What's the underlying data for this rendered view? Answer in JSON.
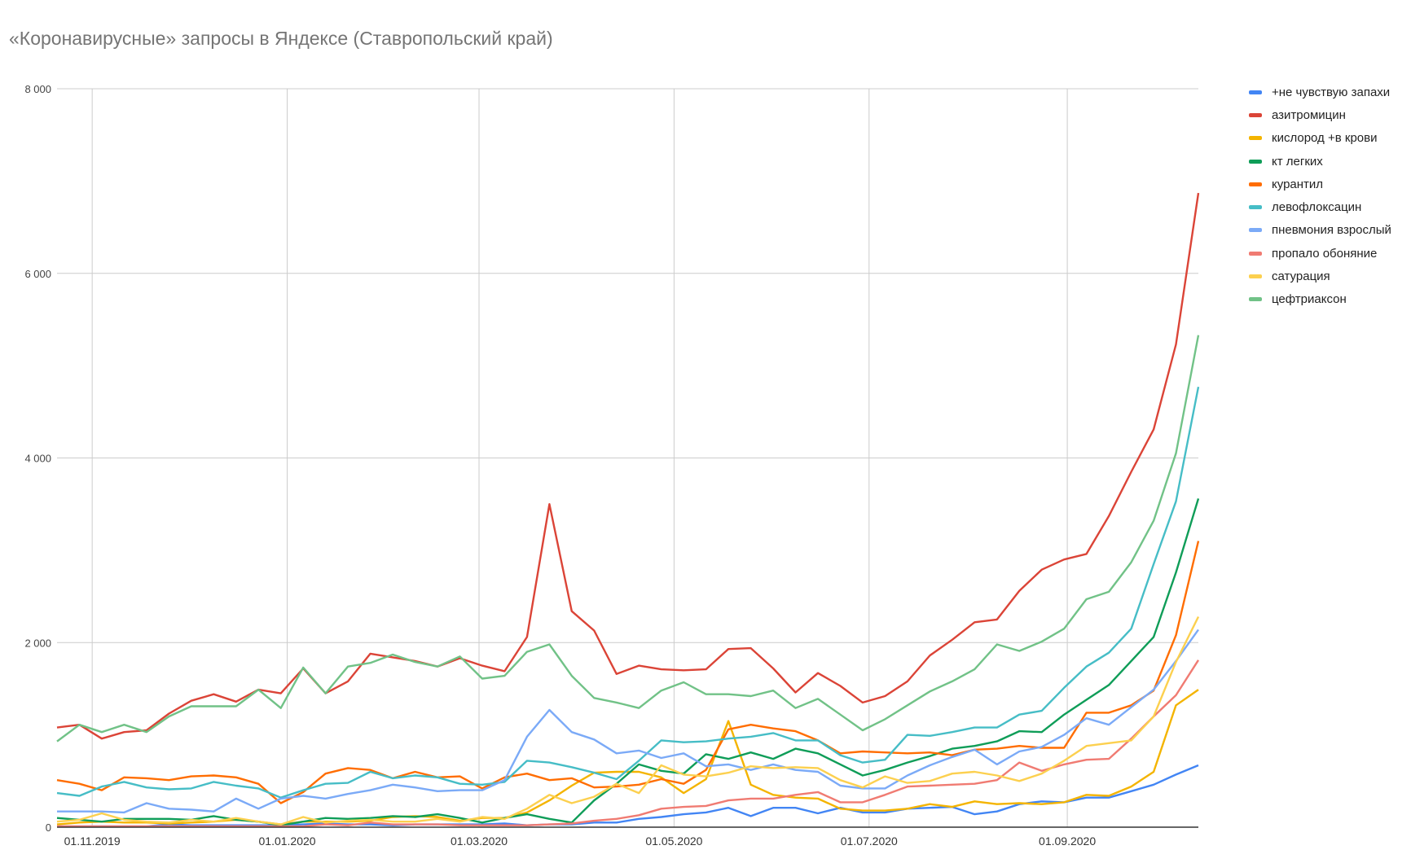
{
  "chart_data": {
    "type": "line",
    "title": "«Коронавирусные» запросы в Яндексе (Ставропольский край)",
    "xlabel": "",
    "ylabel": "",
    "ylim": [
      0,
      8000
    ],
    "yticks": [
      0,
      2000,
      4000,
      6000,
      8000
    ],
    "ytick_labels": [
      "0",
      "2 000",
      "4 000",
      "6 000",
      "8 000"
    ],
    "xticks": [
      "2019-11-01",
      "2020-01-01",
      "2020-03-01",
      "2020-05-01",
      "2020-07-01",
      "2020-09-01"
    ],
    "xtick_labels": [
      "01.11.2019",
      "01.01.2020",
      "01.03.2020",
      "01.05.2020",
      "01.07.2020",
      "01.09.2020"
    ],
    "grid": true,
    "legend_position": "right",
    "x": [
      "2019-10-21",
      "2019-10-28",
      "2019-11-04",
      "2019-11-11",
      "2019-11-18",
      "2019-11-25",
      "2019-12-02",
      "2019-12-09",
      "2019-12-16",
      "2019-12-23",
      "2019-12-30",
      "2020-01-06",
      "2020-01-13",
      "2020-01-20",
      "2020-01-27",
      "2020-02-03",
      "2020-02-10",
      "2020-02-17",
      "2020-02-24",
      "2020-03-02",
      "2020-03-09",
      "2020-03-16",
      "2020-03-23",
      "2020-03-30",
      "2020-04-06",
      "2020-04-13",
      "2020-04-20",
      "2020-04-27",
      "2020-05-04",
      "2020-05-11",
      "2020-05-18",
      "2020-05-25",
      "2020-06-01",
      "2020-06-08",
      "2020-06-15",
      "2020-06-22",
      "2020-06-29",
      "2020-07-06",
      "2020-07-13",
      "2020-07-20",
      "2020-07-27",
      "2020-08-03",
      "2020-08-10",
      "2020-08-17",
      "2020-08-24",
      "2020-08-31",
      "2020-09-07",
      "2020-09-14",
      "2020-09-21",
      "2020-09-28",
      "2020-10-05",
      "2020-10-12"
    ],
    "series": [
      {
        "name": "+не чувствую запахи",
        "color": "#4285f4",
        "values": [
          10,
          10,
          10,
          10,
          10,
          30,
          20,
          20,
          20,
          20,
          20,
          30,
          40,
          30,
          30,
          20,
          30,
          30,
          30,
          30,
          40,
          20,
          30,
          30,
          50,
          50,
          90,
          110,
          140,
          160,
          210,
          120,
          210,
          210,
          150,
          210,
          160,
          160,
          200,
          210,
          220,
          140,
          170,
          250,
          280,
          270,
          320,
          320,
          390,
          460,
          570,
          670
        ]
      },
      {
        "name": "азитромицин",
        "color": "#db4437",
        "values": [
          1080,
          1110,
          960,
          1030,
          1050,
          1230,
          1370,
          1440,
          1360,
          1490,
          1450,
          1720,
          1450,
          1580,
          1880,
          1840,
          1800,
          1740,
          1830,
          1750,
          1690,
          2060,
          3500,
          2340,
          2130,
          1660,
          1750,
          1710,
          1700,
          1710,
          1930,
          1940,
          1720,
          1460,
          1670,
          1530,
          1350,
          1420,
          1580,
          1860,
          2030,
          2220,
          2250,
          2560,
          2790,
          2900,
          2960,
          3370,
          3850,
          4310,
          5230,
          6870
        ]
      },
      {
        "name": "кислород +в крови",
        "color": "#f4b400",
        "values": [
          30,
          50,
          60,
          50,
          50,
          40,
          50,
          60,
          80,
          60,
          30,
          60,
          60,
          60,
          70,
          110,
          120,
          110,
          70,
          100,
          100,
          160,
          290,
          450,
          590,
          600,
          600,
          540,
          370,
          520,
          1150,
          460,
          350,
          320,
          310,
          200,
          180,
          180,
          200,
          250,
          220,
          280,
          250,
          260,
          250,
          270,
          350,
          340,
          440,
          600,
          1320,
          1490
        ]
      },
      {
        "name": "кт легких",
        "color": "#0f9d58",
        "values": [
          100,
          80,
          60,
          90,
          90,
          90,
          80,
          120,
          80,
          60,
          20,
          60,
          100,
          90,
          100,
          120,
          110,
          140,
          100,
          50,
          100,
          140,
          90,
          50,
          290,
          470,
          680,
          610,
          580,
          790,
          740,
          810,
          740,
          850,
          800,
          680,
          560,
          620,
          700,
          770,
          850,
          880,
          930,
          1040,
          1030,
          1220,
          1380,
          1540,
          1800,
          2060,
          2760,
          3560
        ]
      },
      {
        "name": "курантил",
        "color": "#ff6d01",
        "values": [
          510,
          470,
          400,
          540,
          530,
          510,
          550,
          560,
          540,
          470,
          260,
          380,
          580,
          640,
          620,
          530,
          600,
          540,
          550,
          420,
          540,
          580,
          510,
          530,
          430,
          440,
          460,
          520,
          470,
          620,
          1060,
          1110,
          1070,
          1040,
          940,
          800,
          820,
          810,
          800,
          810,
          780,
          840,
          850,
          880,
          860,
          860,
          1240,
          1240,
          1320,
          1480,
          2080,
          3100
        ]
      },
      {
        "name": "левофлоксацин",
        "color": "#46bdc6",
        "values": [
          370,
          340,
          440,
          490,
          430,
          410,
          420,
          490,
          450,
          420,
          320,
          400,
          470,
          480,
          600,
          530,
          560,
          540,
          470,
          460,
          490,
          720,
          700,
          650,
          590,
          520,
          720,
          940,
          920,
          930,
          960,
          980,
          1020,
          940,
          940,
          780,
          700,
          730,
          1000,
          990,
          1030,
          1080,
          1080,
          1220,
          1260,
          1510,
          1740,
          1890,
          2150,
          2850,
          3530,
          4770
        ]
      },
      {
        "name": "пневмония взрослый",
        "color": "#7baaf7",
        "values": [
          170,
          170,
          170,
          160,
          260,
          200,
          190,
          170,
          310,
          200,
          310,
          340,
          310,
          360,
          400,
          460,
          430,
          390,
          400,
          400,
          510,
          980,
          1270,
          1030,
          950,
          800,
          830,
          750,
          800,
          660,
          680,
          620,
          680,
          620,
          600,
          450,
          420,
          420,
          560,
          670,
          760,
          840,
          680,
          820,
          870,
          1000,
          1180,
          1110,
          1300,
          1490,
          1800,
          2140
        ]
      },
      {
        "name": "пропало обоняние",
        "color": "#f07b72",
        "values": [
          10,
          10,
          10,
          10,
          10,
          10,
          10,
          10,
          10,
          10,
          10,
          10,
          30,
          20,
          50,
          30,
          30,
          30,
          20,
          20,
          20,
          20,
          30,
          40,
          70,
          90,
          130,
          200,
          220,
          230,
          290,
          310,
          310,
          350,
          380,
          270,
          270,
          350,
          440,
          450,
          460,
          470,
          510,
          700,
          610,
          680,
          730,
          740,
          960,
          1200,
          1430,
          1810
        ]
      },
      {
        "name": "сатурация",
        "color": "#fcd04f",
        "values": [
          60,
          80,
          150,
          80,
          60,
          50,
          80,
          60,
          100,
          60,
          30,
          110,
          50,
          70,
          80,
          60,
          60,
          90,
          60,
          110,
          90,
          200,
          350,
          260,
          330,
          470,
          370,
          670,
          570,
          550,
          590,
          660,
          640,
          650,
          640,
          510,
          430,
          550,
          480,
          500,
          580,
          600,
          560,
          500,
          580,
          720,
          880,
          910,
          940,
          1200,
          1790,
          2280
        ]
      },
      {
        "name": "цефтриаксон",
        "color": "#71c287",
        "values": [
          930,
          1110,
          1030,
          1110,
          1030,
          1200,
          1310,
          1310,
          1310,
          1490,
          1290,
          1730,
          1450,
          1740,
          1780,
          1870,
          1790,
          1740,
          1850,
          1610,
          1640,
          1900,
          1980,
          1640,
          1400,
          1350,
          1290,
          1480,
          1570,
          1440,
          1440,
          1420,
          1480,
          1290,
          1390,
          1220,
          1050,
          1170,
          1320,
          1470,
          1580,
          1710,
          1980,
          1910,
          2010,
          2150,
          2470,
          2550,
          2870,
          3320,
          4050,
          5330
        ]
      }
    ]
  }
}
